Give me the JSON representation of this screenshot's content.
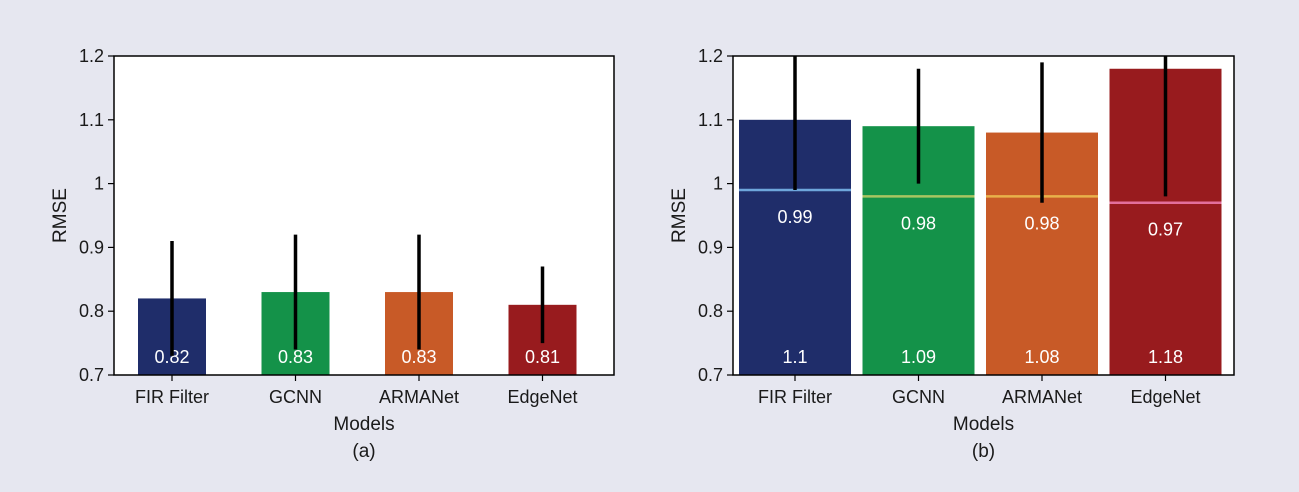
{
  "figure": {
    "background": "#e6e7f0",
    "panel_labels": [
      "(a)",
      "(b)"
    ]
  },
  "chart_data": [
    {
      "type": "bar",
      "panel": "(a)",
      "xlabel": "Models",
      "ylabel": "RMSE",
      "ylim": [
        0.7,
        1.2
      ],
      "yticks": [
        0.7,
        0.8,
        0.9,
        1,
        1.1,
        1.2
      ],
      "ytick_labels": [
        "0.7",
        "0.8",
        "0.9",
        "1",
        "1.1",
        "1.2"
      ],
      "grid": false,
      "categories": [
        "FIR Filter",
        "GCNN",
        "ARMANet",
        "EdgeNet"
      ],
      "values": [
        0.82,
        0.83,
        0.83,
        0.81
      ],
      "value_labels": [
        "0.82",
        "0.83",
        "0.83",
        "0.81"
      ],
      "error_low": [
        0.73,
        0.74,
        0.74,
        0.75
      ],
      "error_high": [
        0.91,
        0.92,
        0.92,
        0.87
      ],
      "colors": [
        "#1f2d6a",
        "#149249",
        "#c85a27",
        "#981b1e"
      ]
    },
    {
      "type": "bar",
      "panel": "(b)",
      "xlabel": "Models",
      "ylabel": "RMSE",
      "ylim": [
        0.7,
        1.2
      ],
      "yticks": [
        0.7,
        0.8,
        0.9,
        1,
        1.1,
        1.2
      ],
      "ytick_labels": [
        "0.7",
        "0.8",
        "0.9",
        "1",
        "1.1",
        "1.2"
      ],
      "grid": false,
      "categories": [
        "FIR Filter",
        "GCNN",
        "ARMANet",
        "EdgeNet"
      ],
      "values": [
        1.1,
        1.09,
        1.08,
        1.18
      ],
      "value_labels": [
        "1.1",
        "1.09",
        "1.08",
        "1.18"
      ],
      "error_low": [
        0.99,
        1.0,
        0.97,
        0.98
      ],
      "error_high": [
        1.2,
        1.18,
        1.19,
        1.2
      ],
      "reference_values": [
        0.99,
        0.98,
        0.98,
        0.97
      ],
      "reference_labels": [
        "0.99",
        "0.98",
        "0.98",
        "0.97"
      ],
      "reference_colors": [
        "#6ea6dc",
        "#a8c561",
        "#e8b14a",
        "#e36f9c"
      ],
      "colors": [
        "#1f2d6a",
        "#149249",
        "#c85a27",
        "#981b1e"
      ]
    }
  ]
}
